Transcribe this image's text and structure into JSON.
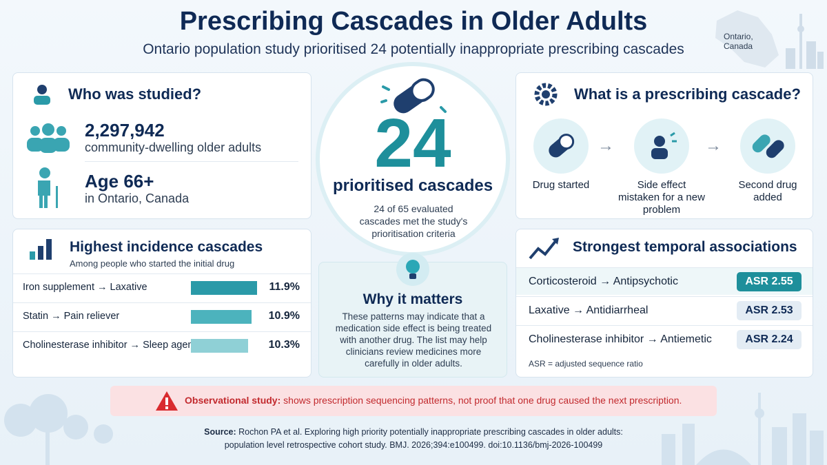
{
  "header": {
    "title": "Prescribing Cascades in Older Adults",
    "subtitle": "Ontario population study prioritised 24 potentially inappropriate prescribing cascades",
    "map_label": "Ontario,\nCanada"
  },
  "who": {
    "heading": "Who was studied?",
    "count": "2,297,942",
    "count_desc": "community-dwelling older adults",
    "age": "Age 66+",
    "age_desc": "in Ontario, Canada"
  },
  "center": {
    "number": "24",
    "label": "prioritised cascades",
    "desc": "24 of 65 evaluated cascades met the study's prioritisation criteria"
  },
  "cascade": {
    "heading": "What is a prescribing cascade?",
    "steps": [
      "Drug started",
      "Side effect mistaken for a new problem",
      "Second drug added"
    ]
  },
  "incidence": {
    "heading": "Highest incidence cascades",
    "subheading": "Among people who started the initial drug",
    "rows": [
      {
        "name": "Iron supplement → Laxative",
        "value": 11.9,
        "value_label": "11.9%"
      },
      {
        "name": "Statin → Pain reliever",
        "value": 10.9,
        "value_label": "10.9%"
      },
      {
        "name": "Cholinesterase inhibitor → Sleep agent",
        "value": 10.3,
        "value_label": "10.3%"
      }
    ]
  },
  "matters": {
    "heading": "Why it matters",
    "text": "These patterns may indicate that a medication side effect is being treated with another drug. The list may help clinicians review medicines more carefully in older adults."
  },
  "associations": {
    "heading": "Strongest temporal associations",
    "rows": [
      {
        "name": "Corticosteroid → Antipsychotic",
        "label": "ASR 2.55"
      },
      {
        "name": "Laxative → Antidiarrheal",
        "label": "ASR 2.53"
      },
      {
        "name": "Cholinesterase inhibitor → Antiemetic",
        "label": "ASR 2.24"
      }
    ],
    "note": "ASR = adjusted sequence ratio"
  },
  "warning": {
    "bold": "Observational study:",
    "text": " shows prescription sequencing patterns, not proof that one drug caused the next prescription."
  },
  "source": {
    "label": "Source:",
    "line1": " Rochon PA et al. Exploring high priority potentially inappropriate prescribing cascades in older adults:",
    "line2": "population level retrospective cohort study. BMJ. 2026;394:e100499. doi:10.1136/bmj-2026-100499"
  }
}
